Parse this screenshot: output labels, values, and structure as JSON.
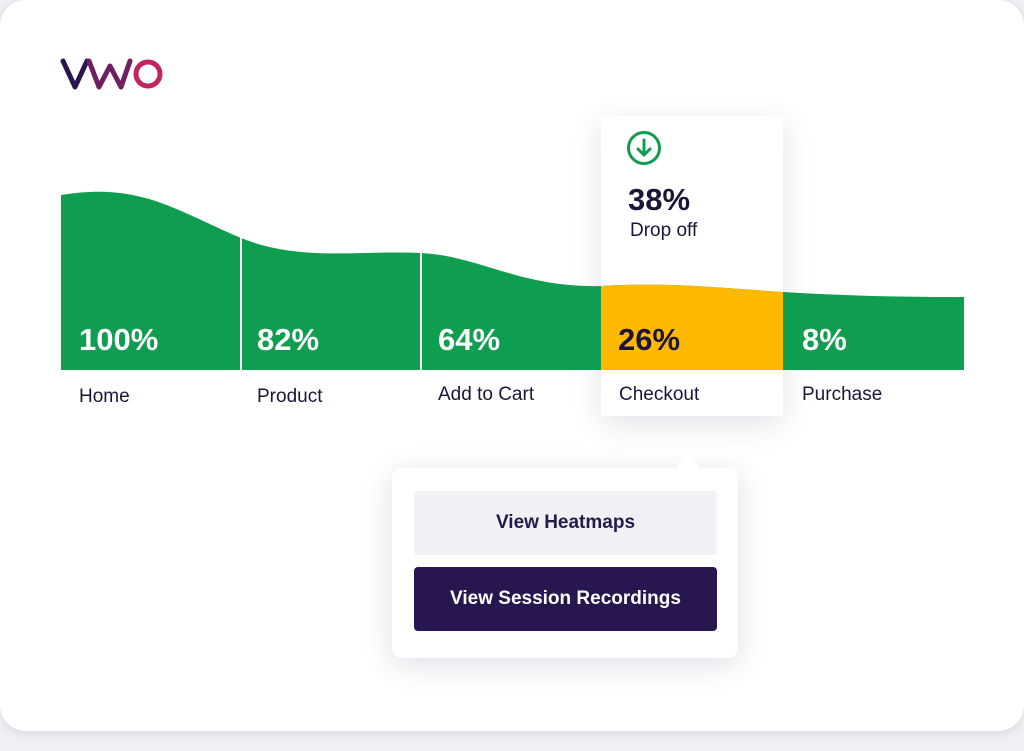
{
  "brand": {
    "logo_text": "VWO",
    "colors": {
      "v": "#2a1550",
      "w": "#6d1f5e",
      "o": "#c1245f"
    }
  },
  "colors": {
    "funnel_green": "#0f9d4f",
    "highlight": "#ffb900",
    "text_dark": "#1b1538",
    "button_dark": "#281650",
    "button_light": "#f1f0f4"
  },
  "dropoff": {
    "icon": "arrow-down-circle-icon",
    "percent": "38%",
    "label": "Drop off"
  },
  "chart_data": {
    "type": "area",
    "categories": [
      "Home",
      "Product",
      "Add to Cart",
      "Checkout",
      "Purchase"
    ],
    "labels": [
      "100%",
      "82%",
      "64%",
      "26%",
      "8%"
    ],
    "values": [
      100,
      82,
      64,
      26,
      8
    ],
    "highlighted": "Checkout",
    "title": "",
    "xlabel": "",
    "ylabel": ""
  },
  "stages": [
    {
      "name": "Home",
      "percent": "100%"
    },
    {
      "name": "Product",
      "percent": "82%"
    },
    {
      "name": "Add to Cart",
      "percent": "64%"
    },
    {
      "name": "Checkout",
      "percent": "26%"
    },
    {
      "name": "Purchase",
      "percent": "8%"
    }
  ],
  "actions": {
    "heatmaps_label": "View Heatmaps",
    "recordings_label": "View Session Recordings"
  }
}
